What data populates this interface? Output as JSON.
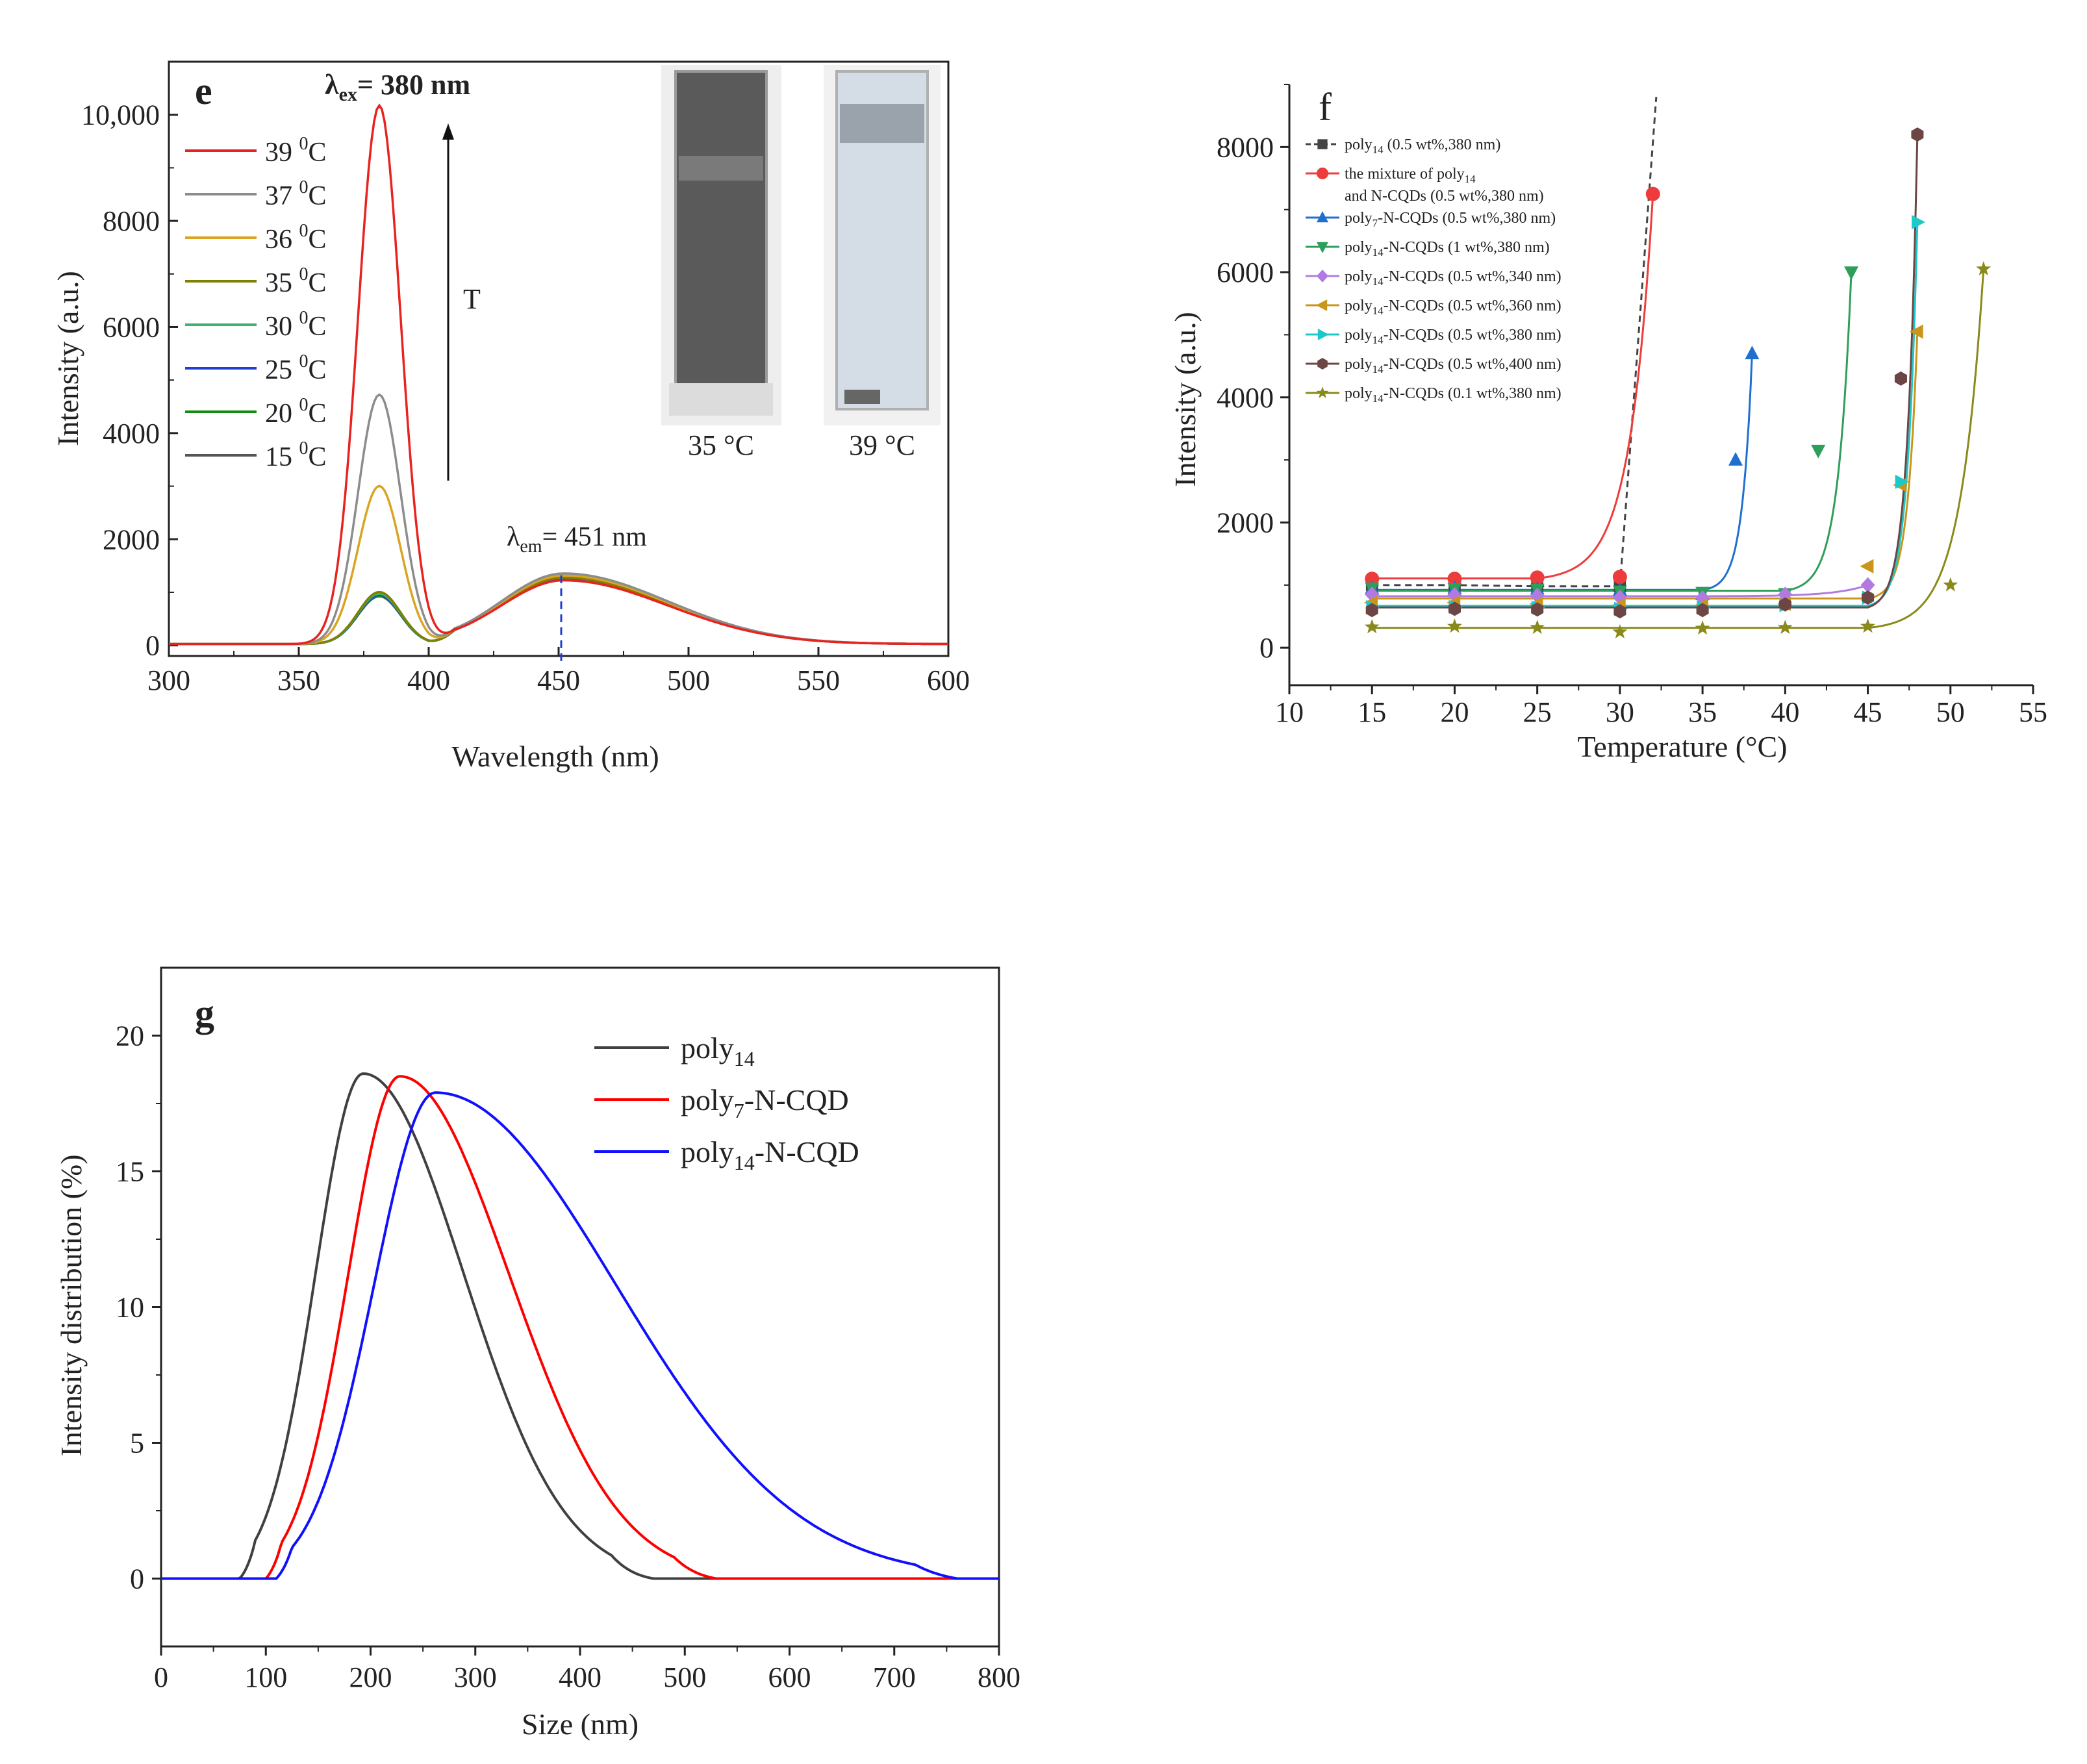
{
  "chart_data": [
    {
      "panel": "e",
      "type": "line",
      "title": "",
      "annotation_ex_prefix": "λ",
      "annotation_ex_sub": "ex",
      "annotation_ex_text": "= 380 nm",
      "annotation_em_prefix": "λ",
      "annotation_em_sub": "em",
      "annotation_em_text": "= 451 nm",
      "arrow_label": "T",
      "xlabel": "Wavelength (nm)",
      "ylabel": "Intensity (a.u.)",
      "xlim": [
        300,
        600
      ],
      "ylim": [
        -200,
        11000
      ],
      "xticks": [
        300,
        350,
        400,
        450,
        500,
        550,
        600
      ],
      "yticks": [
        0,
        2000,
        4000,
        6000,
        8000,
        10000
      ],
      "ytick_labels": [
        "0",
        "2000",
        "4000",
        "6000",
        "8000",
        "10,000"
      ],
      "peak_marker_x": 451,
      "inset_labels": [
        {
          "text": "35 °C",
          "color": "#222222"
        },
        {
          "text": "39 °C",
          "color": "#e8231f"
        }
      ],
      "series": [
        {
          "name": "39 °C",
          "temp": "39",
          "color": "#e8231f",
          "peak380": 10150,
          "peak451": 1200
        },
        {
          "name": "37 °C",
          "temp": "37",
          "color": "#8c8c8c",
          "peak380": 4700,
          "peak451": 1330
        },
        {
          "name": "36 °C",
          "temp": "36",
          "color": "#d9a520",
          "peak380": 2980,
          "peak451": 1290
        },
        {
          "name": "35 °C",
          "temp": "35",
          "color": "#808000",
          "peak380": 980,
          "peak451": 1250
        },
        {
          "name": "30 °C",
          "temp": "30",
          "color": "#3cb371",
          "peak380": 950,
          "peak451": 1250
        },
        {
          "name": "25 °C",
          "temp": "25",
          "color": "#1f3fd1",
          "peak380": 930,
          "peak451": 1240
        },
        {
          "name": "20 °C",
          "temp": "20",
          "color": "#138a13",
          "peak380": 910,
          "peak451": 1230
        },
        {
          "name": "15 °C",
          "temp": "15",
          "color": "#555555",
          "peak380": 900,
          "peak451": 1220
        }
      ]
    },
    {
      "panel": "f",
      "type": "scatter",
      "title": "",
      "xlabel": "Temperature (°C)",
      "ylabel": "Intensity (a.u.)",
      "xlim": [
        10,
        55
      ],
      "ylim": [
        -600,
        9000
      ],
      "xticks": [
        10,
        15,
        20,
        25,
        30,
        35,
        40,
        45,
        50,
        55
      ],
      "yticks": [
        0,
        2000,
        4000,
        6000,
        8000
      ],
      "series": [
        {
          "base": "poly",
          "sub": "14",
          "suffix": " (0.5 wt%,380 nm)",
          "color": "#444444",
          "marker": "square",
          "dashed": true,
          "x": [
            15,
            20,
            25,
            30
          ],
          "y": [
            1000,
            1000,
            980,
            980
          ]
        },
        {
          "base": "the mixture of poly",
          "sub": "14",
          "suffix": "",
          "line2": "and N-CQDs (0.5 wt%,380 nm)",
          "color": "#ee3b3b",
          "marker": "circle",
          "x": [
            15,
            20,
            25,
            30,
            32
          ],
          "y": [
            1100,
            1100,
            1120,
            1130,
            7250
          ]
        },
        {
          "base": "poly",
          "sub": "7",
          "suffix": "-N-CQDs (0.5 wt%,380 nm)",
          "color": "#1f6fd1",
          "marker": "triangle-up",
          "x": [
            15,
            20,
            25,
            30,
            35,
            37,
            38
          ],
          "y": [
            950,
            950,
            940,
            920,
            850,
            3000,
            4700
          ]
        },
        {
          "base": "poly",
          "sub": "14",
          "suffix": "-N-CQDs (1 wt%,380 nm)",
          "color": "#2e9e5b",
          "marker": "triangle-down",
          "x": [
            15,
            20,
            25,
            30,
            35,
            40,
            42,
            44
          ],
          "y": [
            950,
            940,
            930,
            900,
            880,
            860,
            3150,
            6000
          ]
        },
        {
          "base": "poly",
          "sub": "14",
          "suffix": "-N-CQDs (0.5 wt%,340 nm)",
          "color": "#b27ae0",
          "marker": "diamond",
          "x": [
            15,
            20,
            25,
            30,
            35,
            40,
            45
          ],
          "y": [
            850,
            840,
            830,
            800,
            790,
            850,
            1000
          ]
        },
        {
          "base": "poly",
          "sub": "14",
          "suffix": "-N-CQDs (0.5 wt%,360 nm)",
          "color": "#c9961a",
          "marker": "triangle-left",
          "x": [
            15,
            20,
            25,
            30,
            35,
            40,
            45,
            47,
            48
          ],
          "y": [
            720,
            720,
            700,
            680,
            680,
            700,
            1300,
            2600,
            5050
          ]
        },
        {
          "base": "poly",
          "sub": "14",
          "suffix": "-N-CQDs (0.5 wt%,380 nm)",
          "color": "#1ec8c8",
          "marker": "triangle-right",
          "x": [
            15,
            20,
            25,
            30,
            35,
            40,
            45,
            47,
            48
          ],
          "y": [
            650,
            650,
            640,
            620,
            640,
            680,
            800,
            2650,
            6800
          ]
        },
        {
          "base": "poly",
          "sub": "14",
          "suffix": "-N-CQDs (0.5 wt%,400 nm)",
          "color": "#6b4645",
          "marker": "hexagon",
          "x": [
            15,
            20,
            25,
            30,
            35,
            40,
            45,
            47,
            48
          ],
          "y": [
            600,
            620,
            610,
            580,
            600,
            690,
            800,
            4300,
            8200
          ]
        },
        {
          "base": "poly",
          "sub": "14",
          "suffix": "-N-CQDs (0.1 wt%,380 nm)",
          "color": "#8a8a1a",
          "marker": "star",
          "x": [
            15,
            20,
            25,
            30,
            35,
            40,
            45,
            50,
            52
          ],
          "y": [
            330,
            340,
            320,
            250,
            310,
            320,
            340,
            1000,
            6050
          ]
        }
      ]
    },
    {
      "panel": "g",
      "type": "line",
      "title": "",
      "xlabel": "Size (nm)",
      "ylabel": "Intensity distribution (%)",
      "xlim": [
        0,
        800
      ],
      "ylim": [
        -2.5,
        22.5
      ],
      "xticks": [
        0,
        100,
        200,
        300,
        400,
        500,
        600,
        700,
        800
      ],
      "yticks": [
        0,
        5,
        10,
        15,
        20
      ],
      "series": [
        {
          "base": "poly",
          "sub": "14",
          "suffix": "",
          "color": "#404040",
          "peak_x": 193,
          "peak_y": 18.6,
          "onset": 75,
          "end": 470
        },
        {
          "base": "poly",
          "sub": "7",
          "suffix": "-N-CQD",
          "color": "#ff0000",
          "peak_x": 228,
          "peak_y": 18.5,
          "onset": 100,
          "end": 530
        },
        {
          "base": "poly",
          "sub": "14",
          "suffix": "-N-CQD",
          "color": "#1010ff",
          "peak_x": 262,
          "peak_y": 17.9,
          "onset": 110,
          "end": 760
        }
      ]
    }
  ]
}
